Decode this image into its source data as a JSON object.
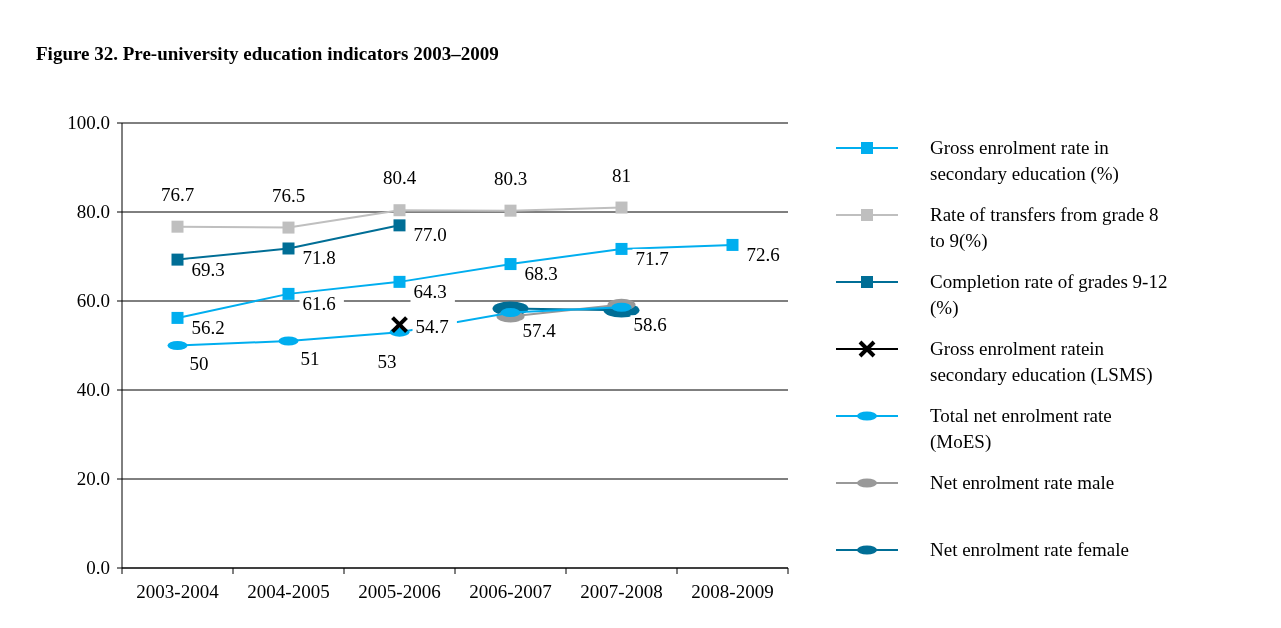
{
  "chart_data": {
    "type": "line",
    "title": "Figure 32. Pre-university education indicators 2003–2009",
    "categories": [
      "2003-2004",
      "2004-2005",
      "2005-2006",
      "2006-2007",
      "2007-2008",
      "2008-2009"
    ],
    "ylim": [
      0,
      100
    ],
    "yticks": [
      {
        "value": 0,
        "label": "0.0"
      },
      {
        "value": 20,
        "label": "20.0"
      },
      {
        "value": 40,
        "label": "40.0"
      },
      {
        "value": 60,
        "label": "60.0"
      },
      {
        "value": 80,
        "label": "80.0"
      },
      {
        "value": 100,
        "label": "100.0"
      }
    ],
    "grid": "y",
    "legend": "right",
    "series": [
      {
        "name": "Gross enrolment rate in secondary education (%)",
        "color": "#00aeef",
        "marker": "square",
        "values": [
          56.2,
          61.6,
          64.3,
          68.3,
          71.7,
          72.6
        ],
        "value_labels": [
          "56.2",
          "61.6",
          "64.3",
          "68.3",
          "71.7",
          "72.6"
        ]
      },
      {
        "name": "Rate of transfers from grade 8 to 9(%)",
        "color": "#bfbfbf",
        "marker": "square",
        "values": [
          76.7,
          76.5,
          80.4,
          80.3,
          81,
          null
        ],
        "value_labels": [
          "76.7",
          "76.5",
          "80.4",
          "80.3",
          "81",
          null
        ]
      },
      {
        "name": "Completion rate of grades 9-12 (%)",
        "color": "#006e96",
        "marker": "square",
        "values": [
          69.3,
          71.8,
          77.0,
          null,
          null,
          null
        ],
        "value_labels": [
          "69.3",
          "71.8",
          "77.0",
          null,
          null,
          null
        ]
      },
      {
        "name": "Gross enrolment ratein secondary education (LSMS)",
        "color": "#000000",
        "marker": "cross",
        "values": [
          null,
          null,
          54.7,
          null,
          null,
          null
        ],
        "value_labels": [
          null,
          null,
          "54.7",
          null,
          null,
          null
        ]
      },
      {
        "name": "Total net enrolment rate (MoES)",
        "color": "#00aeef",
        "marker": "circle",
        "values": [
          50,
          51,
          53,
          57.4,
          58.6,
          null
        ],
        "value_labels": [
          "50",
          "51",
          "53",
          "57.4",
          "58.6",
          null
        ]
      },
      {
        "name": "Net enrolment rate male",
        "color": "#999999",
        "marker": "circle",
        "values": [
          null,
          null,
          null,
          56.5,
          59.2,
          null
        ]
      },
      {
        "name": "Net enrolment rate female",
        "color": "#006e96",
        "marker": "circle",
        "values": [
          null,
          null,
          null,
          58.3,
          57.9,
          null
        ]
      }
    ]
  }
}
